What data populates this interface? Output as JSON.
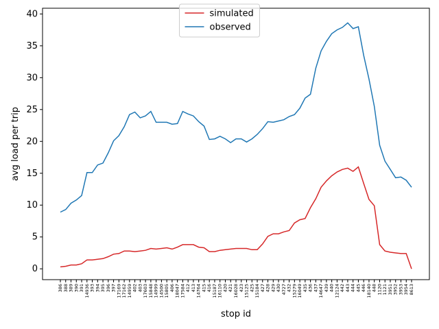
{
  "chart_data": {
    "type": "line",
    "xlabel": "stop id",
    "ylabel": "avg load per trip",
    "categories": [
      "386",
      "388",
      "389",
      "390",
      "391",
      "14936",
      "393",
      "394",
      "395",
      "396",
      "397",
      "17169",
      "17162",
      "14959",
      "402",
      "403",
      "17603",
      "15848",
      "14999",
      "14500",
      "15805",
      "406",
      "18047",
      "17584",
      "412",
      "413",
      "14764",
      "415",
      "416",
      "15187",
      "16110",
      "420",
      "421",
      "16028",
      "423",
      "15125",
      "425",
      "15184",
      "427",
      "428",
      "429",
      "430",
      "4727",
      "432",
      "15279",
      "16049",
      "435",
      "436",
      "437",
      "14647",
      "439",
      "440",
      "12124",
      "442",
      "443",
      "444",
      "445",
      "446",
      "18140",
      "448",
      "1120",
      "1121",
      "3951",
      "3952",
      "3953",
      "3954",
      "8613"
    ],
    "series": [
      {
        "name": "simulated",
        "color": "#d62728",
        "values": [
          0.3,
          0.4,
          0.6,
          0.6,
          0.8,
          1.4,
          1.4,
          1.5,
          1.6,
          1.9,
          2.3,
          2.4,
          2.8,
          2.8,
          2.7,
          2.8,
          2.9,
          3.2,
          3.1,
          3.2,
          3.3,
          3.1,
          3.4,
          3.8,
          3.8,
          3.8,
          3.4,
          3.3,
          2.7,
          2.7,
          2.9,
          3.0,
          3.1,
          3.2,
          3.2,
          3.2,
          3.0,
          3.0,
          3.9,
          5.1,
          5.5,
          5.5,
          5.8,
          6.0,
          7.2,
          7.7,
          7.9,
          9.6,
          11.0,
          12.8,
          13.8,
          14.6,
          15.2,
          15.6,
          15.8,
          15.3,
          16.0,
          13.4,
          10.9,
          9.9,
          3.8,
          2.8,
          2.6,
          2.5,
          2.4,
          2.4,
          0.0
        ]
      },
      {
        "name": "observed",
        "color": "#1f77b4",
        "values": [
          8.9,
          9.3,
          10.3,
          10.8,
          11.5,
          15.1,
          15.1,
          16.3,
          16.6,
          18.2,
          20.1,
          20.9,
          22.3,
          24.2,
          24.6,
          23.7,
          24.0,
          24.7,
          23.0,
          23.0,
          23.0,
          22.7,
          22.8,
          24.7,
          24.3,
          24.0,
          23.1,
          22.4,
          20.3,
          20.4,
          20.8,
          20.4,
          19.8,
          20.4,
          20.4,
          19.9,
          20.4,
          21.1,
          22.0,
          23.1,
          23.0,
          23.2,
          23.4,
          23.9,
          24.2,
          25.2,
          26.8,
          27.4,
          31.5,
          34.2,
          35.7,
          36.9,
          37.5,
          37.9,
          38.6,
          37.7,
          38.0,
          33.5,
          29.8,
          25.5,
          19.4,
          16.9,
          15.6,
          14.3,
          14.4,
          13.9,
          12.8
        ]
      }
    ],
    "ylim": [
      -1.7,
      40.9
    ],
    "yticks": [
      0,
      5,
      10,
      15,
      20,
      25,
      30,
      35,
      40
    ],
    "legend": "upper center"
  }
}
